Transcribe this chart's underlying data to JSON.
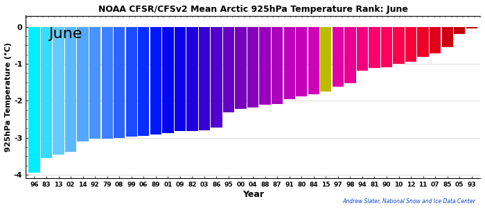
{
  "title": "NOAA CFSR/CFSv2 Mean Arctic 925hPa Temperature Rank: June",
  "xlabel": "Year",
  "ylabel": "925hPa Temperature (°C)",
  "month_label": "June",
  "attribution": "Andrew Slater, National Snow and Ice Data Center",
  "ylim": [
    -4.1,
    0.3
  ],
  "yticks": [
    0,
    -1,
    -2,
    -3,
    -4
  ],
  "years": [
    "96",
    "83",
    "13",
    "02",
    "14",
    "92",
    "79",
    "08",
    "99",
    "06",
    "89",
    "01",
    "09",
    "82",
    "03",
    "86",
    "95",
    "00",
    "04",
    "88",
    "87",
    "91",
    "80",
    "84",
    "15",
    "97",
    "98",
    "94",
    "81",
    "90",
    "10",
    "12",
    "11",
    "07",
    "85",
    "05",
    "93"
  ],
  "values": [
    -3.95,
    -3.55,
    -3.45,
    -3.38,
    -3.1,
    -3.03,
    -3.03,
    -3.0,
    -2.97,
    -2.95,
    -2.92,
    -2.88,
    -2.82,
    -2.82,
    -2.8,
    -2.72,
    -2.32,
    -2.22,
    -2.18,
    -2.1,
    -2.08,
    -1.95,
    -1.88,
    -1.82,
    -1.75,
    -1.62,
    -1.52,
    -1.18,
    -1.12,
    -1.1,
    -1.0,
    -0.95,
    -0.82,
    -0.73,
    -0.55,
    -0.2,
    -0.05
  ],
  "highlight_year": "15",
  "highlight_color": "#bbbb00",
  "background_color": "#ffffff",
  "color_stops": [
    "#00eeff",
    "#66ccff",
    "#55aaff",
    "#4488ff",
    "#2255ff",
    "#0022ff",
    "#0000ee",
    "#2200dd",
    "#5500cc",
    "#7700bb",
    "#9900bb",
    "#bb00bb",
    "#cc00bb",
    "#dd00aa",
    "#ee0088",
    "#ff0066",
    "#ff0044",
    "#ee0022",
    "#cc0011",
    "#bb0000"
  ]
}
